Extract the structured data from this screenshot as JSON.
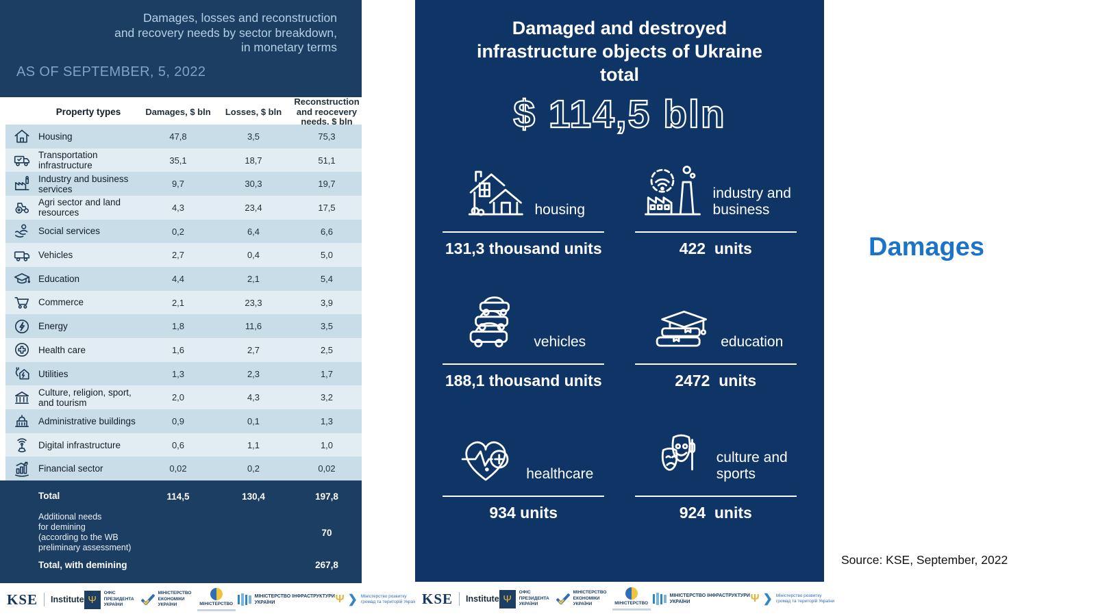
{
  "colors": {
    "navy_left": "#1d3e63",
    "navy_mid": "#0e3565",
    "row_dark": "#c9dde9",
    "row_light": "#e2edf3",
    "accent_blue": "#1b74c7",
    "gold": "#e0b53f"
  },
  "left_panel": {
    "title": "Damages, losses and reconstruction\nand recovery needs by sector breakdown,\nin monetary terms",
    "as_of": "AS OF SEPTEMBER, 5, 2022",
    "table": {
      "columns": [
        "Property types",
        "Damages, $ bln",
        "Losses, $ bln",
        "Reconstruction\nand reocevery\nneeds, $ bln"
      ],
      "rows": [
        {
          "icon": "house-icon",
          "label": "Housing",
          "damages": "47,8",
          "losses": "3,5",
          "reconstruction": "75,3"
        },
        {
          "icon": "truck-icon",
          "label": "Transportation infrastructure",
          "damages": "35,1",
          "losses": "18,7",
          "reconstruction": "51,1"
        },
        {
          "icon": "factory-icon",
          "label": "Industry and business services",
          "damages": "9,7",
          "losses": "30,3",
          "reconstruction": "19,7"
        },
        {
          "icon": "tractor-icon",
          "label": "Agri sector and land resources",
          "damages": "4,3",
          "losses": "23,4",
          "reconstruction": "17,5"
        },
        {
          "icon": "social-icon",
          "label": "Social services",
          "damages": "0,2",
          "losses": "6,4",
          "reconstruction": "6,6"
        },
        {
          "icon": "van-icon",
          "label": "Vehicles",
          "damages": "2,7",
          "losses": "0,4",
          "reconstruction": "5,0"
        },
        {
          "icon": "gradcap-icon",
          "label": "Education",
          "damages": "4,4",
          "losses": "2,1",
          "reconstruction": "5,4"
        },
        {
          "icon": "cart-icon",
          "label": "Commerce",
          "damages": "2,1",
          "losses": "23,3",
          "reconstruction": "3,9"
        },
        {
          "icon": "energy-icon",
          "label": "Energy",
          "damages": "1,8",
          "losses": "11,6",
          "reconstruction": "3,5"
        },
        {
          "icon": "health-icon",
          "label": "Health care",
          "damages": "1,6",
          "losses": "2,7",
          "reconstruction": "2,5"
        },
        {
          "icon": "utilities-icon",
          "label": "Utilities",
          "damages": "1,3",
          "losses": "2,3",
          "reconstruction": "1,7"
        },
        {
          "icon": "museum-icon",
          "label": "Culture, religion, sport, and tourism",
          "damages": "2,0",
          "losses": "4,3",
          "reconstruction": "3,2"
        },
        {
          "icon": "admin-icon",
          "label": "Administrative buildings",
          "damages": "0,9",
          "losses": "0,1",
          "reconstruction": "1,3"
        },
        {
          "icon": "digital-icon",
          "label": "Digital infrastructure",
          "damages": "0,6",
          "losses": "1,1",
          "reconstruction": "1,0"
        },
        {
          "icon": "financial-icon",
          "label": "Financial sector",
          "damages": "0,02",
          "losses": "0,2",
          "reconstruction": "0,02"
        }
      ],
      "total": {
        "label": "Total",
        "damages": "114,5",
        "losses": "130,4",
        "reconstruction": "197,8"
      },
      "demining": {
        "label": "Additional needs\nfor demining\n(according to the WB\npreliminary assessment)",
        "reconstruction": "70"
      },
      "total_with_demining": {
        "label": "Total, with demining",
        "reconstruction": "267,8"
      }
    }
  },
  "infographic": {
    "title": "Damaged and destroyed\ninfrastructure objects of Ukraine\ntotal",
    "total_amount": "$ 114,5 bln",
    "stats": [
      {
        "icon": "housing-big-icon",
        "label": "housing",
        "value": "131,3 thousand units"
      },
      {
        "icon": "industry-big-icon",
        "label": "industry and\nbusiness",
        "value": "422  units"
      },
      {
        "icon": "vehicles-big-icon",
        "label": "vehicles",
        "value": "188,1 thousand units"
      },
      {
        "icon": "education-big-icon",
        "label": "education",
        "value": "2472  units"
      },
      {
        "icon": "healthcare-big-icon",
        "label": "healthcare",
        "value": "934 units"
      },
      {
        "icon": "culture-big-icon",
        "label": "culture and\nsports",
        "value": "924  units"
      }
    ]
  },
  "right_panel": {
    "heading": "Damages",
    "source": "Source: KSE, September, 2022"
  },
  "logos": {
    "kse": {
      "text": "KSE",
      "suffix": "Institute"
    },
    "president": {
      "text": "ОФІС ПРЕЗИДЕНТА УКРАЇНИ"
    },
    "economy": {
      "text": "МІНІСТЕРСТВО ЕКОНОМІКИ УКРАЇНИ"
    },
    "culture": {
      "text": "МІНІСТЕРСТВО"
    },
    "infrastructure": {
      "text": "МІНІСТЕРСТВО ІНФРАСТРУКТУРИ УКРАЇНИ"
    },
    "communities": {
      "text": "Міністерство розвитку громад та територій України"
    }
  },
  "chart_data": [
    {
      "type": "table",
      "title": "Damages, losses and reconstruction and recovery needs by sector breakdown, in monetary terms",
      "as_of": "AS OF SEPTEMBER, 5, 2022",
      "columns": [
        "Property types",
        "Damages, $ bln",
        "Losses, $ bln",
        "Reconstruction and reocevery needs, $ bln"
      ],
      "rows": [
        [
          "Housing",
          47.8,
          3.5,
          75.3
        ],
        [
          "Transportation infrastructure",
          35.1,
          18.7,
          51.1
        ],
        [
          "Industry and business services",
          9.7,
          30.3,
          19.7
        ],
        [
          "Agri sector and land resources",
          4.3,
          23.4,
          17.5
        ],
        [
          "Social services",
          0.2,
          6.4,
          6.6
        ],
        [
          "Vehicles",
          2.7,
          0.4,
          5.0
        ],
        [
          "Education",
          4.4,
          2.1,
          5.4
        ],
        [
          "Commerce",
          2.1,
          23.3,
          3.9
        ],
        [
          "Energy",
          1.8,
          11.6,
          3.5
        ],
        [
          "Health care",
          1.6,
          2.7,
          2.5
        ],
        [
          "Utilities",
          1.3,
          2.3,
          1.7
        ],
        [
          "Culture, religion, sport, and tourism",
          2.0,
          4.3,
          3.2
        ],
        [
          "Administrative buildings",
          0.9,
          0.1,
          1.3
        ],
        [
          "Digital infrastructure",
          0.6,
          1.1,
          1.0
        ],
        [
          "Financial sector",
          0.02,
          0.2,
          0.02
        ]
      ],
      "total": [
        114.5,
        130.4,
        197.8
      ],
      "additional_needs_for_demining_reconstruction": 70,
      "total_with_demining_reconstruction": 267.8
    },
    {
      "type": "table",
      "title": "Damaged and destroyed infrastructure objects of Ukraine total $ 114,5 bln",
      "total_bln_usd": 114.5,
      "categories": [
        "housing",
        "industry and business",
        "vehicles",
        "education",
        "healthcare",
        "culture and sports"
      ],
      "values_units": [
        131300,
        422,
        188100,
        2472,
        934,
        924
      ],
      "value_labels": [
        "131,3 thousand units",
        "422 units",
        "188,1 thousand units",
        "2472 units",
        "934 units",
        "924 units"
      ]
    }
  ]
}
